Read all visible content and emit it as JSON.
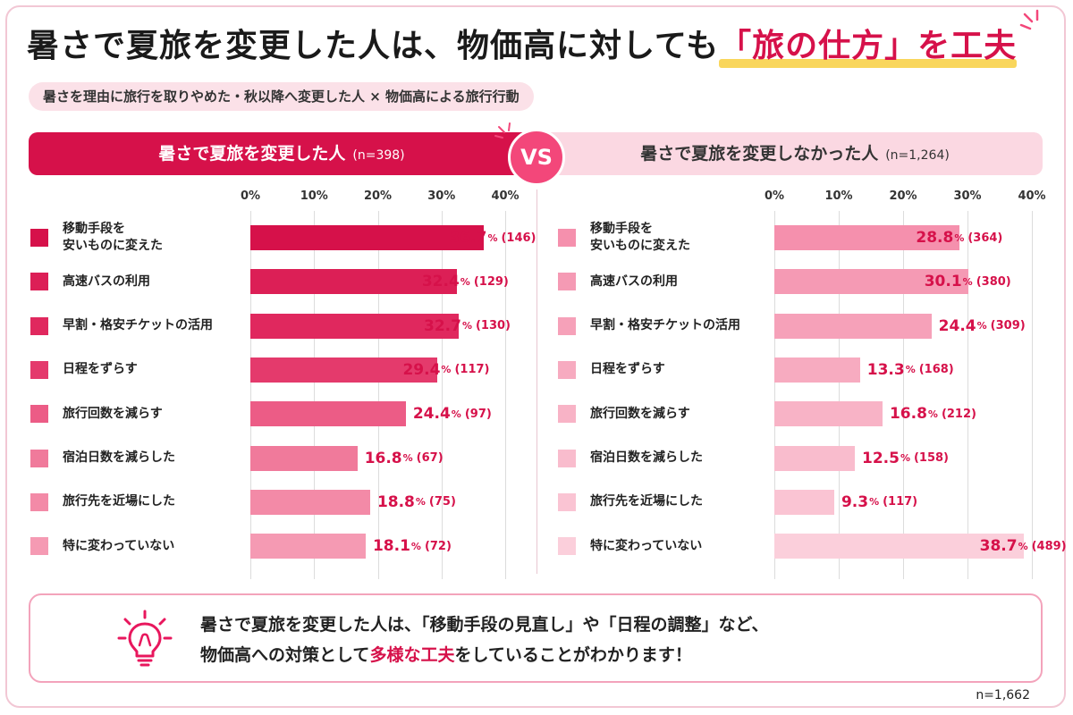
{
  "title": {
    "main": "暑さで夏旅を変更した人は、物価高に対しても",
    "highlight": "「旅の仕方」を工夫"
  },
  "subtitle": "暑さを理由に旅行を取りやめた・秋以降へ変更した人 × 物価高による旅行行動",
  "vs_label": "VS",
  "note": {
    "line1": "暑さで夏旅を変更した人は、「移動手段の見直し」や「日程の調整」など、",
    "line2_pre": "物価高への対策として",
    "line2_em": "多様な工夫",
    "line2_post": "をしていることがわかります！"
  },
  "total_n": "n=1,662",
  "chart_data": [
    {
      "type": "bar",
      "orientation": "horizontal",
      "title": "暑さで夏旅を変更した人",
      "n_label": "(n=398)",
      "xlim": [
        0,
        40
      ],
      "ticks": [
        "0%",
        "10%",
        "20%",
        "30%",
        "40%"
      ],
      "categories": [
        "移動手段を\n安いものに変えた",
        "高速バスの利用",
        "早割・格安チケットの活用",
        "日程をずらす",
        "旅行回数を減らす",
        "宿泊日数を減らした",
        "旅行先を近場にした",
        "特に変わっていない"
      ],
      "values": [
        36.7,
        32.4,
        32.7,
        29.4,
        24.4,
        16.8,
        18.8,
        18.1
      ],
      "counts": [
        "(146)",
        "(129)",
        "(130)",
        "(117)",
        "(97)",
        "(67)",
        "(75)",
        "(72)"
      ],
      "colors": [
        "#d6114a",
        "#dc1f56",
        "#e0285e",
        "#e43a6c",
        "#ec5c86",
        "#f07a9b",
        "#f38aa7",
        "#f59ab3"
      ]
    },
    {
      "type": "bar",
      "orientation": "horizontal",
      "title": "暑さで夏旅を変更しなかった人",
      "n_label": "(n=1,264)",
      "xlim": [
        0,
        40
      ],
      "ticks": [
        "0%",
        "10%",
        "20%",
        "30%",
        "40%"
      ],
      "categories": [
        "移動手段を\n安いものに変えた",
        "高速バスの利用",
        "早割・格安チケットの活用",
        "日程をずらす",
        "旅行回数を減らす",
        "宿泊日数を減らした",
        "旅行先を近場にした",
        "特に変わっていない"
      ],
      "values": [
        28.8,
        30.1,
        24.4,
        13.3,
        16.8,
        12.5,
        9.3,
        38.7
      ],
      "counts": [
        "(364)",
        "(380)",
        "(309)",
        "(168)",
        "(212)",
        "(158)",
        "(117)",
        "(489)"
      ],
      "colors": [
        "#f590ad",
        "#f59ab4",
        "#f6a1b9",
        "#f7abc0",
        "#f8b3c6",
        "#f9bccd",
        "#fac4d3",
        "#fbcfdb"
      ]
    }
  ]
}
